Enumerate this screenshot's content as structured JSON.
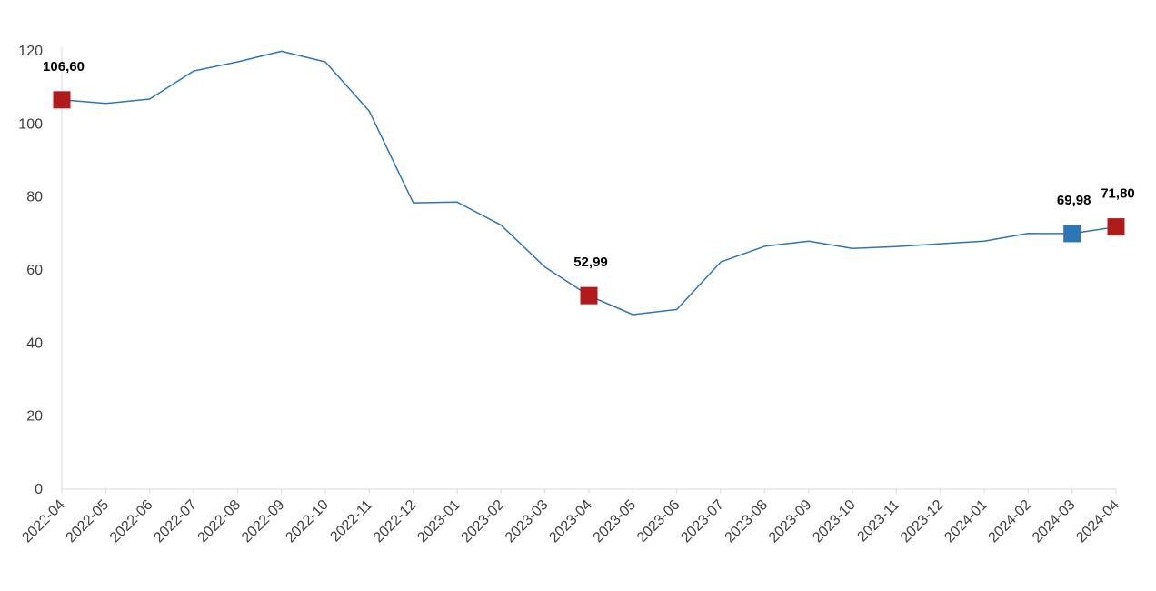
{
  "chart_data": {
    "type": "line",
    "title": "",
    "xlabel": "",
    "ylabel": "",
    "ylim": [
      0,
      120
    ],
    "yticks": [
      "0",
      "20",
      "40",
      "60",
      "80",
      "100",
      "120"
    ],
    "grid": false,
    "legend": "none",
    "categories": [
      "2022-04",
      "2022-05",
      "2022-06",
      "2022-07",
      "2022-08",
      "2022-09",
      "2022-10",
      "2022-11",
      "2022-12",
      "2023-01",
      "2023-02",
      "2023-03",
      "2023-04",
      "2023-05",
      "2023-06",
      "2023-07",
      "2023-08",
      "2023-09",
      "2023-10",
      "2023-11",
      "2023-12",
      "2024-01",
      "2024-02",
      "2024-03",
      "2024-04"
    ],
    "series": [
      {
        "color": "#2E75B6",
        "values": [
          106.6,
          105.6,
          106.8,
          114.5,
          117.0,
          119.9,
          117.0,
          103.5,
          78.4,
          78.6,
          72.3,
          60.8,
          52.99,
          47.8,
          49.2,
          62.2,
          66.5,
          67.9,
          65.9,
          66.4,
          67.2,
          67.9,
          70.0,
          69.98,
          71.8
        ]
      }
    ],
    "highlights": [
      {
        "category": "2022-04",
        "value": 106.6,
        "label": "106,60",
        "color": "#B01C1C"
      },
      {
        "category": "2023-04",
        "value": 52.99,
        "label": "52,99",
        "color": "#B01C1C"
      },
      {
        "category": "2024-03",
        "value": 69.98,
        "label": "69,98",
        "color": "#2E75B6"
      },
      {
        "category": "2024-04",
        "value": 71.8,
        "label": "71,80",
        "color": "#B01C1C"
      }
    ],
    "axis_color": "#d9d9d9"
  }
}
